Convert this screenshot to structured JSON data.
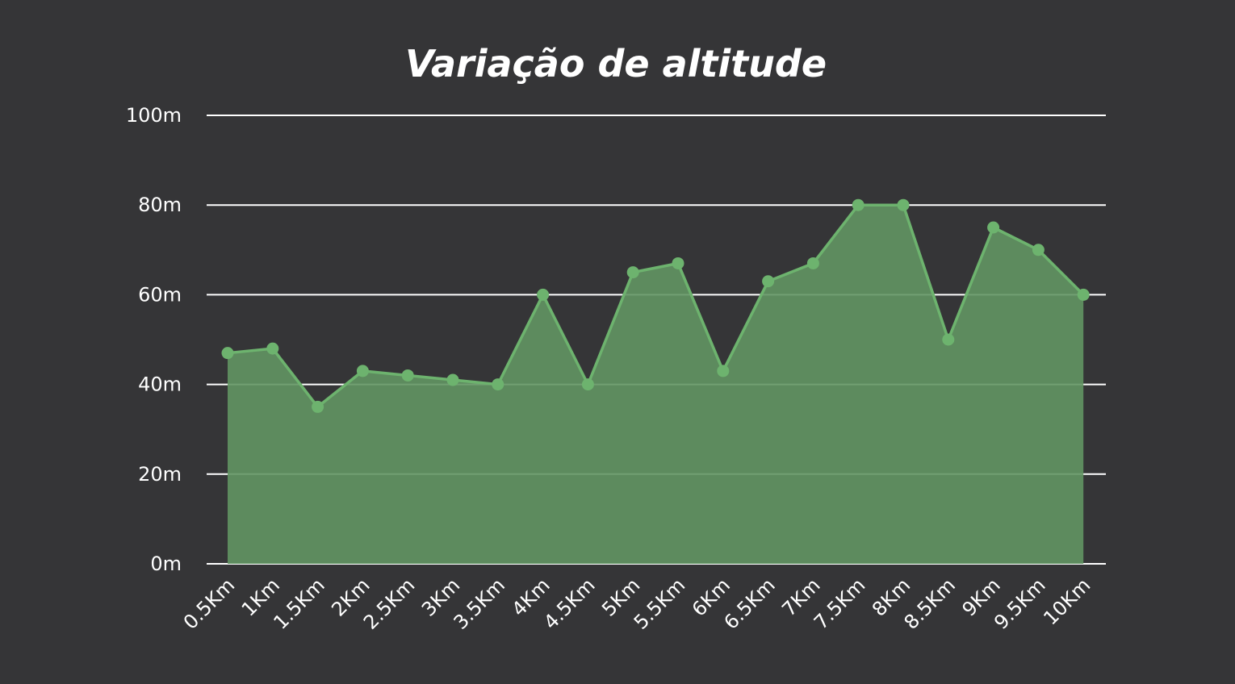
{
  "chart_data": {
    "type": "area",
    "title": "Variação de altitude",
    "xlabel": "",
    "ylabel": "",
    "categories": [
      "0.5Km",
      "1Km",
      "1.5Km",
      "2Km",
      "2.5Km",
      "3Km",
      "3.5Km",
      "4Km",
      "4.5Km",
      "5Km",
      "5.5Km",
      "6Km",
      "6.5Km",
      "7Km",
      "7.5Km",
      "8Km",
      "8.5Km",
      "9Km",
      "9.5Km",
      "10Km"
    ],
    "series": [
      {
        "values": [
          47,
          48,
          35,
          43,
          42,
          41,
          40,
          60,
          40,
          65,
          67,
          43,
          63,
          67,
          80,
          80,
          50,
          75,
          70,
          60
        ]
      }
    ],
    "ylim": [
      0,
      100
    ],
    "yticks": [
      0,
      20,
      40,
      60,
      80,
      100
    ],
    "ytick_labels": [
      "0m",
      "20m",
      "40m",
      "60m",
      "80m",
      "100m"
    ],
    "grid": "horizontal",
    "legend": "none",
    "colors": {
      "background": "#353537",
      "fill": "#629563",
      "line": "#6db36e",
      "grid": "#ffffff",
      "text": "#ffffff"
    }
  }
}
